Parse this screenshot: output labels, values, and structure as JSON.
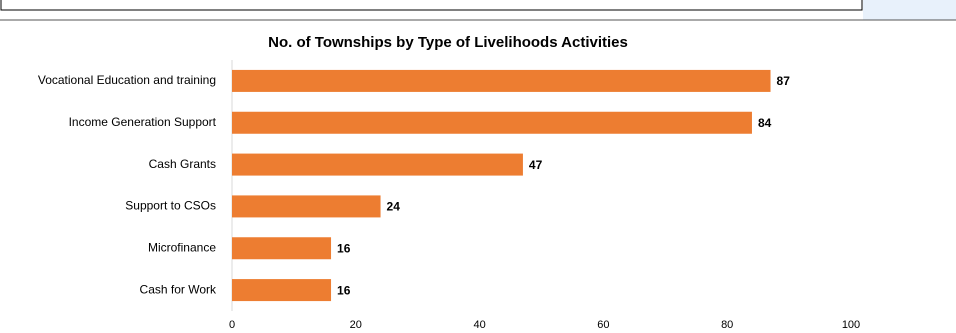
{
  "chart_data": {
    "type": "hbar",
    "title": "No. of Townships by Type of Livelihoods Activities",
    "categories": [
      "Vocational Education and training",
      "Income Generation Support",
      "Cash Grants",
      "Support to CSOs",
      "Microfinance",
      "Cash for Work"
    ],
    "values": [
      87,
      84,
      47,
      24,
      16,
      16
    ],
    "color": "#ed7d31",
    "xlim": [
      0,
      100
    ],
    "xticks": [
      0,
      20,
      40,
      60,
      80,
      100
    ],
    "grid": false
  }
}
